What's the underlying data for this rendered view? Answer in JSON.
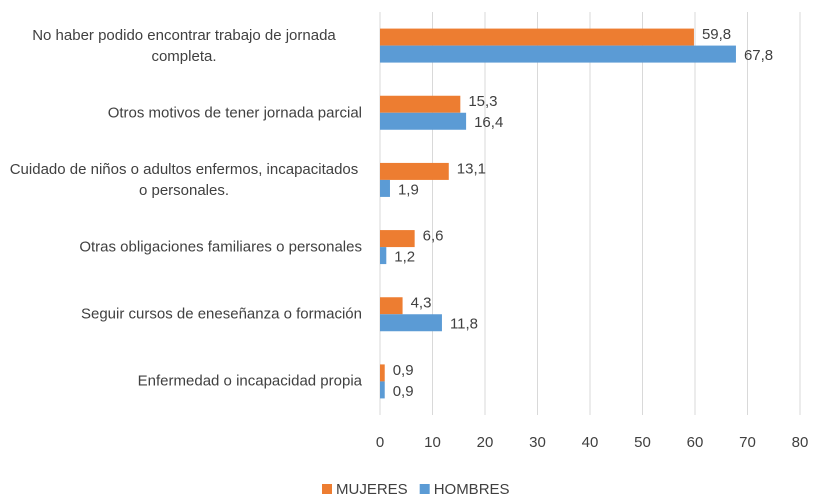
{
  "chart_data": {
    "type": "barh",
    "categories": [
      "No haber podido encontrar trabajo de jornada completa.",
      "Otros motivos de tener jornada parcial",
      "Cuidado de niños o adultos enfermos, incapacitados o personales.",
      "Otras obligaciones familiares o personales",
      "Seguir cursos de eneseñanza o formación",
      "Enfermedad o incapacidad propia"
    ],
    "series": [
      {
        "name": "MUJERES",
        "color": "#ed7d31",
        "values": [
          59.8,
          15.3,
          13.1,
          6.6,
          4.3,
          0.9
        ],
        "value_labels": [
          "59,8",
          "15,3",
          "13,1",
          "6,6",
          "4,3",
          "0,9"
        ]
      },
      {
        "name": "HOMBRES",
        "color": "#5b9bd5",
        "values": [
          67.8,
          16.4,
          1.9,
          1.2,
          11.8,
          0.9
        ],
        "value_labels": [
          "67,8",
          "16,4",
          "1,9",
          "1,2",
          "11,8",
          "0,9"
        ]
      }
    ],
    "xlim": [
      0,
      80
    ],
    "xticks": [
      0,
      10,
      20,
      30,
      40,
      50,
      60,
      70,
      80
    ],
    "grid": true,
    "legend": "bottom"
  }
}
